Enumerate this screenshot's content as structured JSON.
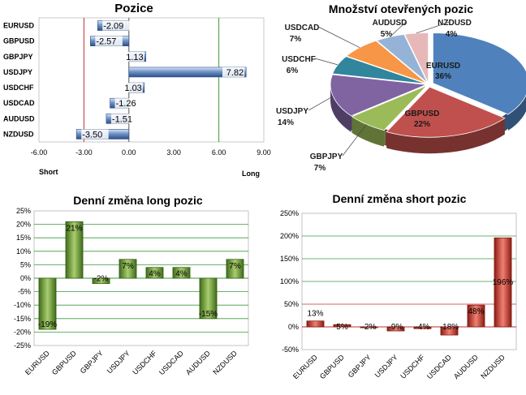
{
  "colors": {
    "blue_bar": "#4a72b0",
    "green_bar": "#5d8a2a",
    "red_bar": "#c0392b",
    "grid_green": "#3c9a3c",
    "red_line": "#c03030"
  },
  "chart_data": [
    {
      "type": "bar",
      "orientation": "horizontal",
      "title": "Pozice",
      "categories": [
        "EURUSD",
        "GBPUSD",
        "GBPJPY",
        "USDJPY",
        "USDCHF",
        "USDCAD",
        "AUDUSD",
        "NZDUSD"
      ],
      "values": [
        -2.09,
        -2.57,
        1.13,
        7.82,
        1.03,
        -1.26,
        -1.51,
        -3.5
      ],
      "value_labels": [
        "-2.09",
        "-2.57",
        "1.13",
        "7.82",
        "1.03",
        "-1.26",
        "-1.51",
        "-3.50"
      ],
      "xlim": [
        -6,
        9
      ],
      "xticks": [
        "-6.00",
        "-3.00",
        "0.00",
        "3.00",
        "6.00",
        "9.00"
      ],
      "left_label": "Short",
      "right_label": "Long"
    },
    {
      "type": "pie",
      "title": "Množství otevřených pozic",
      "slices": [
        {
          "name": "EURUSD",
          "value": 36,
          "label": "36%",
          "color": "#4f81bd"
        },
        {
          "name": "GBPUSD",
          "value": 22,
          "label": "22%",
          "color": "#c0504d"
        },
        {
          "name": "GBPJPY",
          "value": 7,
          "label": "7%",
          "color": "#9bbb59"
        },
        {
          "name": "USDJPY",
          "value": 14,
          "label": "14%",
          "color": "#8064a2"
        },
        {
          "name": "USDCHF",
          "value": 6,
          "label": "6%",
          "color": "#31859c"
        },
        {
          "name": "USDCAD",
          "value": 7,
          "label": "7%",
          "color": "#f79646"
        },
        {
          "name": "AUDUSD",
          "value": 5,
          "label": "5%",
          "color": "#95b3d7"
        },
        {
          "name": "NZDUSD",
          "value": 4,
          "label": "4%",
          "color": "#e6b9b8"
        }
      ]
    },
    {
      "type": "bar",
      "title": "Denní změna long pozic",
      "categories": [
        "EURUSD",
        "GBPUSD",
        "GBPJPY",
        "USDJPY",
        "USDCHF",
        "USDCAD",
        "AUDUSD",
        "NZDUSD"
      ],
      "values": [
        -19,
        21,
        -2,
        7,
        4,
        4,
        -15,
        7
      ],
      "value_labels": [
        "-19%",
        "21%",
        "-2%",
        "7%",
        "4%",
        "4%",
        "-15%",
        "7%"
      ],
      "ylim": [
        -25,
        25
      ],
      "yticks": [
        "25%",
        "20%",
        "15%",
        "10%",
        "5%",
        "0%",
        "-5%",
        "-10%",
        "-15%",
        "-20%",
        "-25%"
      ]
    },
    {
      "type": "bar",
      "title": "Denní změna short pozic",
      "categories": [
        "EURUSD",
        "GBPUSD",
        "GBPJPY",
        "USDJPY",
        "USDCHF",
        "USDCAD",
        "AUDUSD",
        "NZDUSD"
      ],
      "values": [
        13,
        5,
        -2,
        -9,
        -4,
        -18,
        48,
        196
      ],
      "value_labels": [
        "13%",
        "5%",
        "-2%",
        "-9%",
        "-4%",
        "-18%",
        "48%",
        "196%"
      ],
      "ylim": [
        -50,
        250
      ],
      "yticks": [
        "250%",
        "200%",
        "150%",
        "100%",
        "50%",
        "0%",
        "-50%"
      ]
    }
  ]
}
